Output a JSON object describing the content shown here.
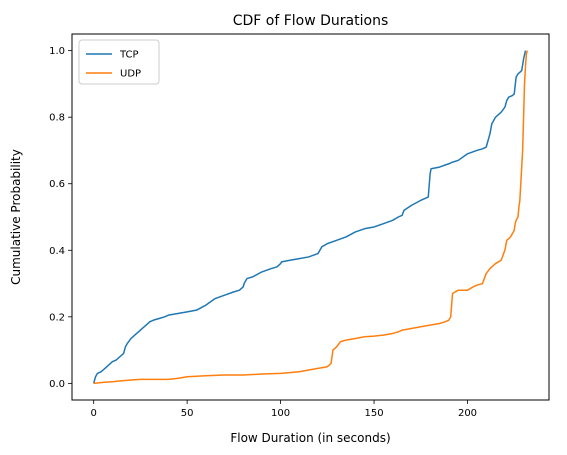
{
  "chart_data": {
    "type": "line",
    "title": "CDF of Flow Durations",
    "xlabel": "Flow Duration (in seconds)",
    "ylabel": "Cumulative Probability",
    "xlim": [
      -11.6,
      243.6
    ],
    "ylim": [
      -0.05,
      1.05
    ],
    "xticks": [
      0,
      50,
      100,
      150,
      200
    ],
    "yticks": [
      0.0,
      0.2,
      0.4,
      0.6,
      0.8,
      1.0
    ],
    "xtick_labels": [
      "0",
      "50",
      "100",
      "150",
      "200"
    ],
    "ytick_labels": [
      "0.0",
      "0.2",
      "0.4",
      "0.6",
      "0.8",
      "1.0"
    ],
    "grid": false,
    "legend_position": "upper-left",
    "series": [
      {
        "name": "TCP",
        "color": "#1f77b4",
        "x": [
          0,
          1,
          2,
          4,
          6,
          8,
          10,
          12,
          14,
          16,
          16.5,
          17,
          18,
          20,
          22,
          24,
          26,
          28,
          30,
          32,
          35,
          38,
          40,
          45,
          50,
          55,
          60,
          65,
          70,
          75,
          78,
          80,
          80.5,
          82,
          85,
          90,
          95,
          98,
          100,
          100.5,
          105,
          110,
          115,
          120,
          121,
          122,
          125,
          130,
          135,
          140,
          145,
          150,
          155,
          160,
          163,
          165,
          166,
          170,
          175,
          179,
          180,
          180.5,
          185,
          190,
          192,
          195,
          200,
          205,
          208,
          210,
          212,
          213,
          215,
          218,
          220,
          221,
          222,
          224,
          225,
          226,
          227,
          228,
          229,
          230,
          231
        ],
        "y": [
          0.0,
          0.02,
          0.03,
          0.035,
          0.045,
          0.055,
          0.065,
          0.07,
          0.08,
          0.09,
          0.1,
          0.11,
          0.12,
          0.135,
          0.145,
          0.155,
          0.165,
          0.175,
          0.185,
          0.19,
          0.195,
          0.2,
          0.205,
          0.21,
          0.215,
          0.22,
          0.235,
          0.255,
          0.265,
          0.275,
          0.28,
          0.29,
          0.3,
          0.315,
          0.32,
          0.335,
          0.345,
          0.35,
          0.36,
          0.365,
          0.37,
          0.375,
          0.38,
          0.39,
          0.4,
          0.41,
          0.42,
          0.43,
          0.44,
          0.455,
          0.465,
          0.47,
          0.48,
          0.49,
          0.5,
          0.505,
          0.52,
          0.535,
          0.55,
          0.56,
          0.63,
          0.645,
          0.65,
          0.66,
          0.665,
          0.67,
          0.69,
          0.7,
          0.705,
          0.71,
          0.75,
          0.78,
          0.8,
          0.815,
          0.83,
          0.85,
          0.86,
          0.865,
          0.87,
          0.92,
          0.93,
          0.935,
          0.94,
          0.975,
          1.0
        ]
      },
      {
        "name": "UDP",
        "color": "#ff7f0e",
        "x": [
          0,
          5,
          10,
          15,
          20,
          25,
          30,
          35,
          40,
          45,
          50,
          60,
          70,
          80,
          90,
          100,
          110,
          115,
          120,
          125,
          127,
          128,
          130,
          132,
          135,
          140,
          145,
          150,
          155,
          160,
          163,
          165,
          170,
          175,
          180,
          185,
          188,
          190,
          191,
          192,
          195,
          200,
          203,
          205,
          208,
          210,
          212,
          215,
          218,
          220,
          221,
          222,
          223,
          224,
          225,
          225.5,
          226,
          227,
          227.5,
          228,
          228.5,
          229,
          229.5,
          230,
          230.5,
          231,
          231.5,
          232
        ],
        "y": [
          0.0,
          0.003,
          0.005,
          0.008,
          0.01,
          0.012,
          0.012,
          0.012,
          0.012,
          0.015,
          0.02,
          0.023,
          0.025,
          0.025,
          0.028,
          0.03,
          0.035,
          0.04,
          0.045,
          0.05,
          0.06,
          0.1,
          0.11,
          0.125,
          0.13,
          0.135,
          0.14,
          0.142,
          0.145,
          0.15,
          0.155,
          0.16,
          0.165,
          0.17,
          0.175,
          0.18,
          0.185,
          0.19,
          0.2,
          0.27,
          0.28,
          0.28,
          0.29,
          0.295,
          0.3,
          0.33,
          0.345,
          0.36,
          0.37,
          0.4,
          0.43,
          0.435,
          0.44,
          0.45,
          0.46,
          0.48,
          0.49,
          0.5,
          0.53,
          0.55,
          0.6,
          0.65,
          0.7,
          0.8,
          0.9,
          0.95,
          0.99,
          1.0
        ]
      }
    ]
  }
}
